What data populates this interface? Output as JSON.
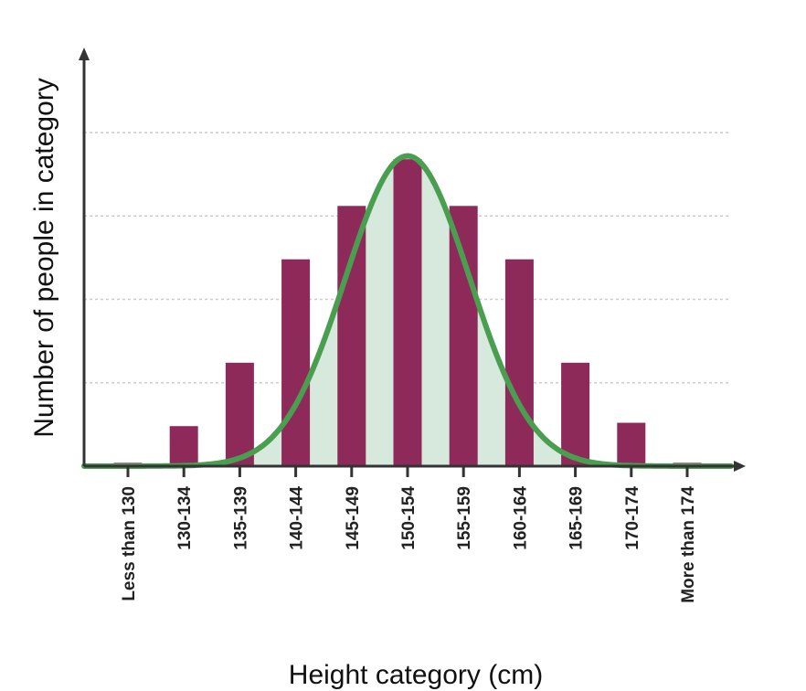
{
  "chart_data": {
    "type": "bar",
    "xlabel": "Height category (cm)",
    "ylabel": "Number of people in category",
    "categories": [
      "Less than 130",
      "130-134",
      "135-139",
      "140-144",
      "145-149",
      "150-154",
      "155-159",
      "160-164",
      "165-169",
      "170-174",
      "More than 174"
    ],
    "values": [
      0.1,
      1.2,
      3.1,
      6.2,
      7.8,
      9.2,
      7.8,
      6.2,
      3.1,
      1.3,
      0.1
    ],
    "ylim": [
      0,
      10
    ],
    "grid": true,
    "curve": {
      "type": "normal",
      "peak": 9.3,
      "center_category": "150-154"
    },
    "colors": {
      "bars": "#8e2a5a",
      "curve": "#4a9e4f",
      "curve_fill": "#d6e9dc",
      "grid": "#cccccc",
      "axis": "#333333"
    }
  }
}
